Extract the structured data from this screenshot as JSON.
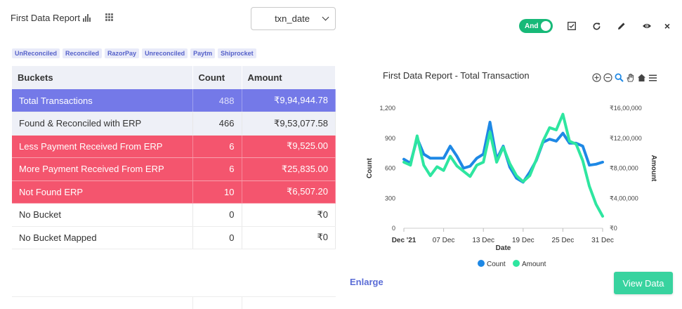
{
  "header": {
    "report_title": "First Data Report",
    "bar_chart_icon": "bar-chart-icon",
    "table_icon": "table-grid-icon",
    "date_select": {
      "value": "txn_date"
    }
  },
  "tags": [
    "UnReconciled",
    "Reconciled",
    "RazorPay",
    "Unreconciled",
    "Paytm",
    "Shiprocket"
  ],
  "table": {
    "headers": {
      "bucket": "Buckets",
      "count": "Count",
      "amount": "Amount"
    },
    "rows": [
      {
        "bucket": "Total  Transactions",
        "count": "488",
        "amount": "₹9,94,944.78",
        "style": "blue"
      },
      {
        "bucket": "Found & Reconciled with ERP",
        "count": "466",
        "amount": "₹9,53,077.58",
        "style": "light"
      },
      {
        "bucket": "Less Payment Received From ERP",
        "count": "6",
        "amount": "₹9,525.00",
        "style": "red"
      },
      {
        "bucket": "More Payment Received From ERP",
        "count": "6",
        "amount": "₹25,835.00",
        "style": "red"
      },
      {
        "bucket": "Not Found ERP",
        "count": "10",
        "amount": "₹6,507.20",
        "style": "red"
      },
      {
        "bucket": "No Bucket",
        "count": "0",
        "amount": "₹0",
        "style": "plain"
      },
      {
        "bucket": "No Bucket Mapped",
        "count": "0",
        "amount": "₹0",
        "style": "plain"
      }
    ]
  },
  "toolbar": {
    "toggle_label": "And",
    "toggle_on": true,
    "icons": [
      "checkbox-icon",
      "refresh-icon",
      "edit-icon",
      "eye-icon",
      "close-icon"
    ],
    "close_label": "×"
  },
  "chart_data": {
    "type": "line",
    "title": "First Data Report - Total Transaction",
    "xlabel": "Date",
    "ylabel": "Count",
    "y2label": "Amount",
    "x_ticks": [
      "Dec '21",
      "07 Dec",
      "13 Dec",
      "19 Dec",
      "25 Dec",
      "31 Dec"
    ],
    "x_range": [
      1,
      31
    ],
    "ylim": [
      0,
      1200
    ],
    "y_ticks": [
      "0",
      "300",
      "600",
      "900",
      "1,200"
    ],
    "y2lim": [
      0,
      1600000
    ],
    "y2_ticks": [
      "₹0",
      "₹4,00,000",
      "₹8,00,000",
      "₹12,00,000",
      "₹16,00,000"
    ],
    "legend_position": "bottom",
    "series": [
      {
        "name": "Count",
        "color": "#1e88e5",
        "axis": "left",
        "x": [
          1,
          2,
          3,
          4,
          5,
          6,
          7,
          8,
          9,
          10,
          11,
          12,
          13,
          14,
          15,
          16,
          17,
          18,
          19,
          20,
          21,
          22,
          23,
          24,
          25,
          26,
          27,
          28,
          29,
          30,
          31
        ],
        "values": [
          690,
          650,
          900,
          740,
          700,
          700,
          700,
          820,
          720,
          600,
          620,
          700,
          740,
          1060,
          690,
          820,
          610,
          500,
          460,
          560,
          680,
          860,
          890,
          870,
          950,
          850,
          850,
          820,
          630,
          640,
          660
        ]
      },
      {
        "name": "Amount",
        "color": "#2ee6a0",
        "axis": "right",
        "x": [
          1,
          2,
          3,
          4,
          5,
          6,
          7,
          8,
          9,
          10,
          11,
          12,
          13,
          14,
          15,
          16,
          17,
          18,
          19,
          20,
          21,
          22,
          23,
          24,
          25,
          26,
          27,
          28,
          29,
          30,
          31
        ],
        "values": [
          880000,
          840000,
          1230000,
          840000,
          700000,
          820000,
          770000,
          960000,
          830000,
          760000,
          690000,
          840000,
          880000,
          1280000,
          880000,
          1080000,
          860000,
          700000,
          620000,
          700000,
          920000,
          1160000,
          1340000,
          1310000,
          1520000,
          1160000,
          1120000,
          900000,
          560000,
          320000,
          160000
        ]
      }
    ],
    "toolbar_icons": [
      "zoom-in-icon",
      "zoom-out-icon",
      "magnify-icon",
      "pan-hand-icon",
      "home-icon",
      "menu-icon"
    ]
  },
  "actions": {
    "enlarge": "Enlarge",
    "view_data": "View Data"
  }
}
